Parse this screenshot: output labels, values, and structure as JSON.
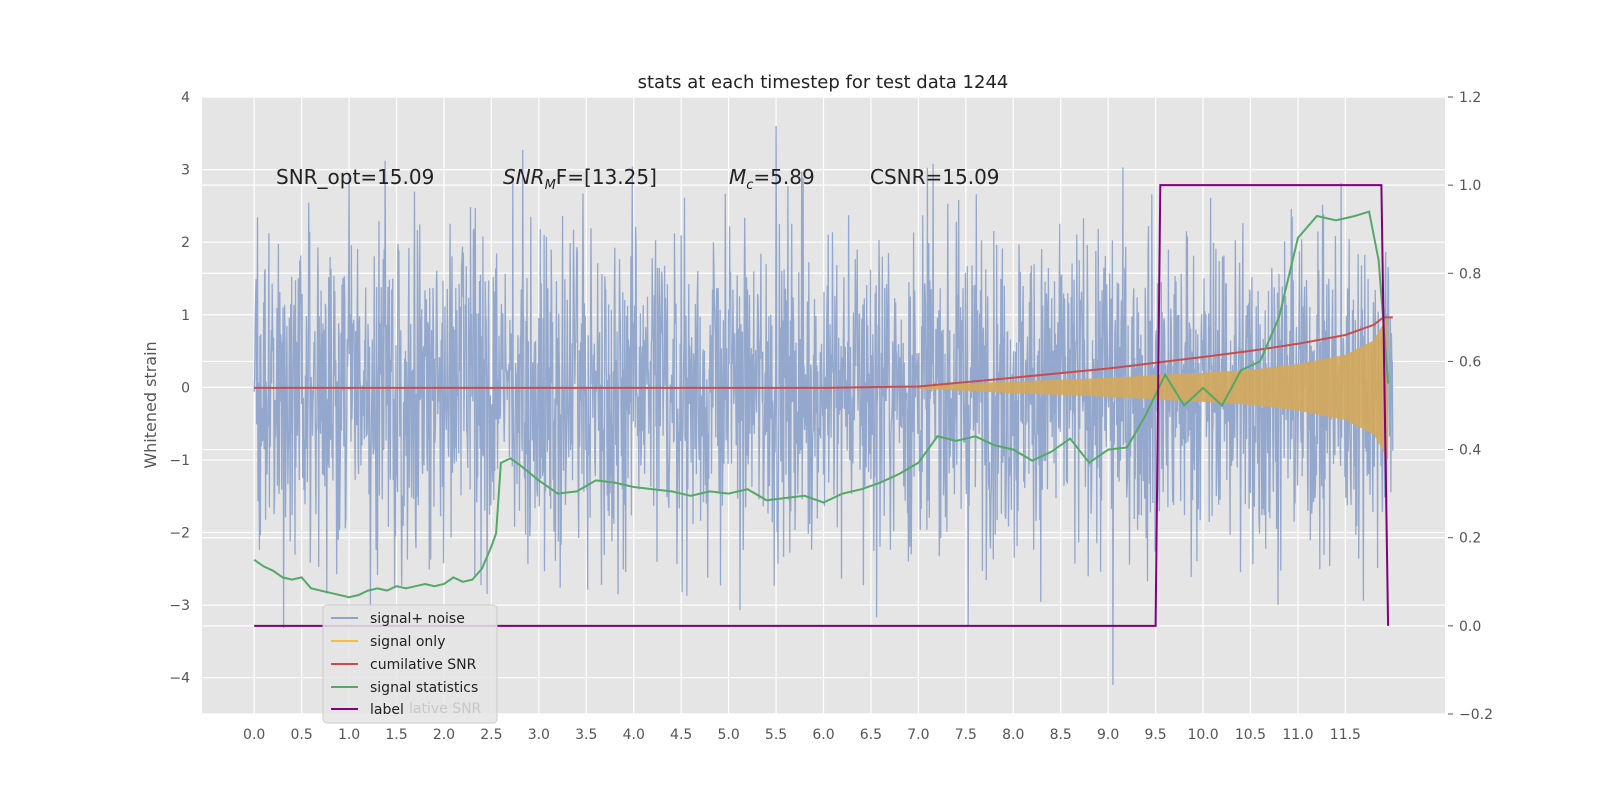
{
  "chart_data": {
    "type": "line",
    "title": "stats at each timestep for test data 1244",
    "ylabel": "Whitened strain",
    "xlabel": "",
    "x_ticks": [
      "0.0",
      "0.5",
      "1.0",
      "1.5",
      "2.0",
      "2.5",
      "3.0",
      "3.5",
      "4.0",
      "4.5",
      "5.0",
      "5.5",
      "6.0",
      "6.5",
      "7.0",
      "7.5",
      "8.0",
      "8.5",
      "9.0",
      "9.5",
      "10.0",
      "10.5",
      "11.0",
      "11.5"
    ],
    "y_ticks": [
      "4",
      "3",
      "2",
      "1",
      "0",
      "−1",
      "−2",
      "−3",
      "−4"
    ],
    "y2_ticks": [
      "1.2",
      "1.0",
      "0.8",
      "0.6",
      "0.4",
      "0.2",
      "0.0",
      "−0.2"
    ],
    "xlim": [
      -0.55,
      12.55
    ],
    "ylim": [
      -4.5,
      4
    ],
    "y2lim": [
      -0.2,
      1.2
    ],
    "grid": true,
    "legend_position": "lower-left",
    "annotations": [
      "SNR_opt=15.09",
      "SNR",
      "M",
      "F=[13.25]",
      "c",
      "=5.89",
      "CSNR=15.09"
    ],
    "annotation_sub": "M",
    "legend_overlap_text": "lative SNR",
    "series": [
      {
        "name": "signal+ noise",
        "color": "#8fa4cb",
        "axis": "left",
        "style": "dense noise trace",
        "x_range": [
          0.0,
          12.0
        ],
        "typical_envelope": [
          -2.3,
          2.3
        ],
        "extremes": {
          "max": 3.6,
          "min": -4.1
        }
      },
      {
        "name": "signal only",
        "color": "#f0c040",
        "fill_color": "#d4a85a",
        "axis": "left",
        "style": "chirp envelope",
        "x": [
          7.0,
          8.0,
          9.0,
          9.5,
          10.0,
          10.5,
          11.0,
          11.5,
          11.8,
          11.95
        ],
        "amplitude": [
          0.02,
          0.08,
          0.13,
          0.17,
          0.2,
          0.24,
          0.32,
          0.45,
          0.65,
          1.0
        ]
      },
      {
        "name": "cumilative SNR",
        "color": "#cc4c4c",
        "axis": "right",
        "x": [
          0.0,
          6.0,
          7.0,
          8.0,
          9.0,
          9.5,
          10.0,
          10.5,
          11.0,
          11.5,
          11.8,
          11.9,
          12.0
        ],
        "values": [
          0.54,
          0.54,
          0.543,
          0.563,
          0.584,
          0.597,
          0.61,
          0.624,
          0.64,
          0.66,
          0.683,
          0.7,
          0.7
        ]
      },
      {
        "name": "signal statistics",
        "color": "#55a868",
        "axis": "right",
        "x": [
          0.0,
          0.1,
          0.2,
          0.3,
          0.4,
          0.5,
          0.6,
          0.8,
          1.0,
          1.1,
          1.2,
          1.3,
          1.4,
          1.5,
          1.6,
          1.7,
          1.8,
          1.9,
          2.0,
          2.1,
          2.2,
          2.3,
          2.4,
          2.5,
          2.55,
          2.6,
          2.7,
          2.8,
          3.0,
          3.2,
          3.4,
          3.6,
          3.8,
          4.0,
          4.2,
          4.4,
          4.6,
          4.8,
          5.0,
          5.2,
          5.4,
          5.6,
          5.8,
          6.0,
          6.2,
          6.4,
          6.6,
          6.8,
          7.0,
          7.2,
          7.4,
          7.6,
          7.8,
          8.0,
          8.2,
          8.4,
          8.6,
          8.8,
          9.0,
          9.2,
          9.4,
          9.6,
          9.8,
          10.0,
          10.2,
          10.4,
          10.6,
          10.8,
          11.0,
          11.2,
          11.4,
          11.6,
          11.75,
          11.85,
          11.95
        ],
        "values": [
          0.15,
          0.135,
          0.125,
          0.11,
          0.105,
          0.11,
          0.085,
          0.075,
          0.065,
          0.07,
          0.08,
          0.085,
          0.08,
          0.09,
          0.085,
          0.09,
          0.095,
          0.09,
          0.095,
          0.11,
          0.1,
          0.105,
          0.13,
          0.18,
          0.21,
          0.37,
          0.38,
          0.365,
          0.33,
          0.3,
          0.305,
          0.33,
          0.325,
          0.315,
          0.31,
          0.305,
          0.295,
          0.305,
          0.3,
          0.31,
          0.285,
          0.29,
          0.295,
          0.28,
          0.3,
          0.31,
          0.325,
          0.345,
          0.37,
          0.43,
          0.42,
          0.43,
          0.41,
          0.4,
          0.375,
          0.395,
          0.425,
          0.37,
          0.4,
          0.405,
          0.48,
          0.57,
          0.5,
          0.54,
          0.5,
          0.58,
          0.6,
          0.7,
          0.88,
          0.93,
          0.92,
          0.93,
          0.94,
          0.83,
          0.55
        ]
      },
      {
        "name": "label",
        "color": "#800080",
        "axis": "right",
        "x": [
          0.0,
          9.5,
          9.55,
          11.88,
          11.95
        ],
        "values": [
          0.0,
          0.0,
          1.0,
          1.0,
          0.0
        ]
      }
    ]
  }
}
